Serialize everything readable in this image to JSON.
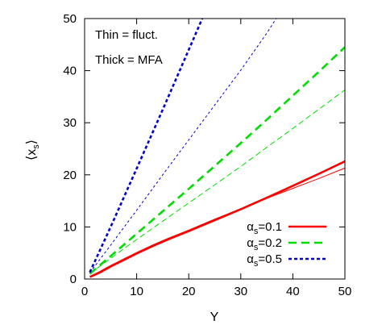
{
  "chart_data": {
    "type": "line",
    "title": "",
    "xlabel": "Y",
    "ylabel_main": "⟨x",
    "ylabel_sub": "s",
    "ylabel_close": "⟩",
    "xlim": [
      0,
      50
    ],
    "ylim": [
      0,
      50
    ],
    "xticks": [
      0,
      10,
      20,
      30,
      40,
      50
    ],
    "yticks": [
      0,
      10,
      20,
      30,
      40,
      50
    ],
    "grid": false,
    "legend_position": "bottom-right",
    "annotations": [
      {
        "text": "Thin  = fluct."
      },
      {
        "text": "Thick = MFA"
      }
    ],
    "legend": [
      {
        "prefix": "α",
        "sub": "s",
        "suffix": "=0.1",
        "color": "#ff0000",
        "dash": "solid"
      },
      {
        "prefix": "α",
        "sub": "s",
        "suffix": "=0.2",
        "color": "#00dd00",
        "dash": "dashed"
      },
      {
        "prefix": "α",
        "sub": "s",
        "suffix": "=0.5",
        "color": "#0000cc",
        "dash": "dotted"
      }
    ],
    "series": [
      {
        "alpha": "0.1",
        "kind": "MFA",
        "thick": true,
        "color": "#ff0000",
        "dash": "solid",
        "x": [
          1,
          3,
          5,
          8,
          10,
          13,
          16,
          20,
          25,
          30,
          35,
          40,
          45,
          50
        ],
        "y": [
          0.4,
          1.3,
          2.4,
          3.9,
          4.9,
          6.3,
          7.6,
          9.2,
          11.3,
          13.4,
          15.6,
          17.9,
          20.2,
          22.6
        ]
      },
      {
        "alpha": "0.1",
        "kind": "fluct.",
        "thick": false,
        "color": "#ff0000",
        "dash": "solid",
        "x": [
          1,
          3,
          5,
          8,
          10,
          13,
          16,
          20,
          25,
          30,
          35,
          40,
          45,
          50
        ],
        "y": [
          0.5,
          1.5,
          2.6,
          4.1,
          5.1,
          6.5,
          7.8,
          9.4,
          11.5,
          13.5,
          15.5,
          17.4,
          19.3,
          21.3
        ]
      },
      {
        "alpha": "0.2",
        "kind": "MFA",
        "thick": true,
        "color": "#00dd00",
        "dash": "dashed",
        "x": [
          1,
          5,
          10,
          15,
          20,
          25,
          30,
          35,
          40,
          45,
          50
        ],
        "y": [
          1.0,
          4.4,
          8.7,
          13.0,
          17.3,
          21.7,
          26.1,
          30.6,
          35.2,
          39.8,
          44.5
        ]
      },
      {
        "alpha": "0.2",
        "kind": "fluct.",
        "thick": false,
        "color": "#00dd00",
        "dash": "dashed",
        "x": [
          1,
          5,
          10,
          15,
          20,
          25,
          30,
          35,
          40,
          45,
          50
        ],
        "y": [
          1.0,
          4.0,
          7.6,
          11.1,
          14.6,
          18.1,
          21.6,
          25.3,
          28.9,
          32.6,
          36.3
        ]
      },
      {
        "alpha": "0.5",
        "kind": "MFA",
        "thick": true,
        "color": "#0000cc",
        "dash": "dotted",
        "x": [
          1,
          5,
          10,
          15,
          20,
          22.6
        ],
        "y": [
          1.3,
          10.0,
          21.2,
          32.5,
          44.0,
          50.0
        ]
      },
      {
        "alpha": "0.5",
        "kind": "fluct.",
        "thick": false,
        "color": "#0000cc",
        "dash": "dotted",
        "x": [
          1,
          5,
          10,
          15,
          20,
          25,
          30,
          35,
          36.8
        ],
        "y": [
          1.2,
          6.5,
          13.2,
          20.0,
          26.7,
          33.4,
          40.1,
          47.2,
          50.0
        ]
      }
    ]
  }
}
